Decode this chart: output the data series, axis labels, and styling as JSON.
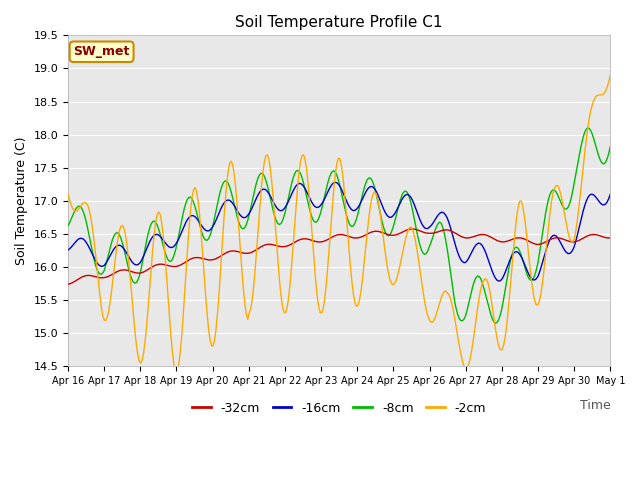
{
  "title": "Soil Temperature Profile C1",
  "xlabel": "Time",
  "ylabel": "Soil Temperature (C)",
  "ylim": [
    14.5,
    19.5
  ],
  "annotation_text": "SW_met",
  "annotation_bg": "#ffffcc",
  "annotation_border": "#cc8800",
  "annotation_text_color": "#880000",
  "bg_color": "#e8e8e8",
  "line_colors": {
    "-32cm": "#cc0000",
    "-16cm": "#0000cc",
    "-8cm": "#00bb00",
    "-2cm": "#ffaa00"
  },
  "x_tick_labels": [
    "Apr 16",
    "Apr 17",
    "Apr 18",
    "Apr 19",
    "Apr 20",
    "Apr 21",
    "Apr 22",
    "Apr 23",
    "Apr 24",
    "Apr 25",
    "Apr 26",
    "Apr 27",
    "Apr 28",
    "Apr 29",
    "Apr 30",
    "May 1"
  ],
  "grid_color": "#ffffff",
  "yticks": [
    14.5,
    15.0,
    15.5,
    16.0,
    16.5,
    17.0,
    17.5,
    18.0,
    18.5,
    19.0,
    19.5
  ]
}
